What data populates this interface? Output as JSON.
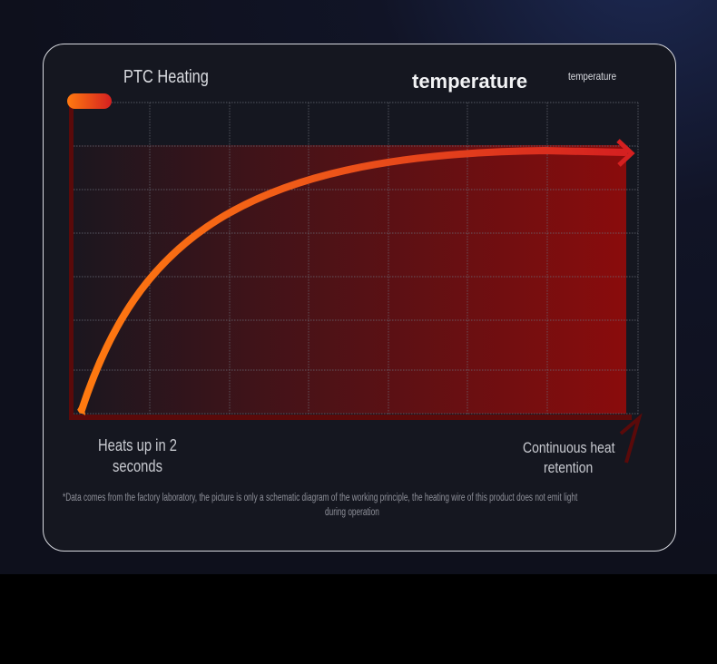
{
  "header": {
    "left_label": "PTC Heating",
    "title": "temperature",
    "small_label": "temperature"
  },
  "labels": {
    "start": "Heats up in 2 seconds",
    "start_line1": "Heats up in 2",
    "start_line2": "seconds",
    "end_line1": "Continuous heat",
    "end_line2": "retention"
  },
  "footnote": {
    "line1": "*Data comes from the factory laboratory, the picture is only a schematic diagram of the working principle, the heating wire of this product does not emit light",
    "line2": "during operation"
  },
  "colors": {
    "curve_start": "#ff7a10",
    "curve_end": "#d42020",
    "fill": "#8a0c0c",
    "axis": "#5a0a0a"
  }
}
